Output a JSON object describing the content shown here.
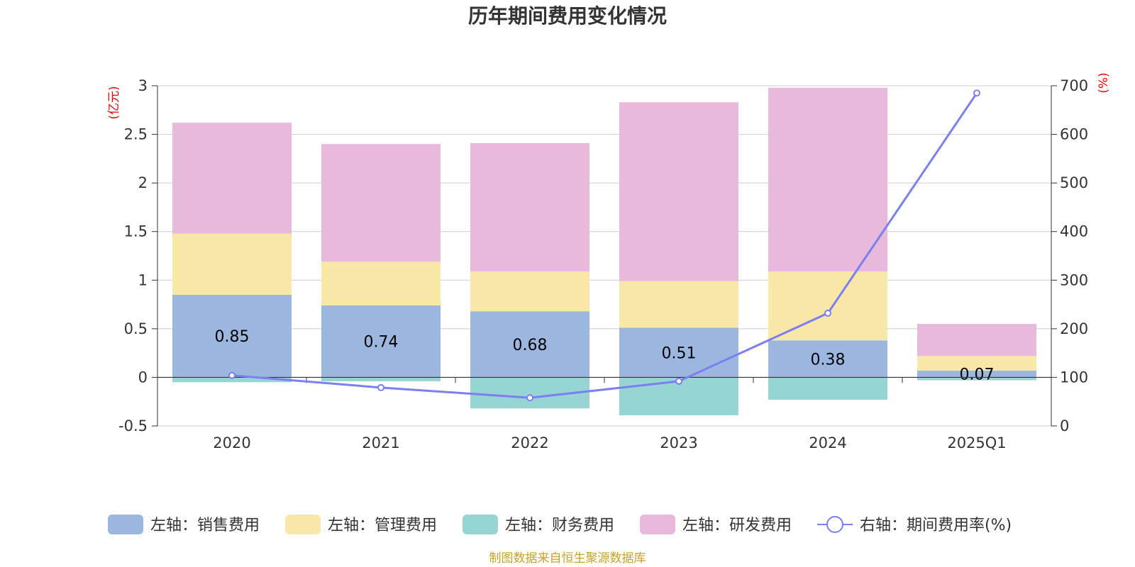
{
  "chart_data": {
    "type": "bar",
    "title": "历年期间费用变化情况",
    "categories": [
      "2020",
      "2021",
      "2022",
      "2023",
      "2024",
      "2025Q1"
    ],
    "left_axis": {
      "unit": "(亿元)",
      "ylim": [
        -0.5,
        3
      ],
      "ticks": [
        "3",
        "2.5",
        "2",
        "1.5",
        "1",
        "0.5",
        "0",
        "-0.5"
      ]
    },
    "right_axis": {
      "unit": "(%)",
      "ylim": [
        0,
        700
      ],
      "ticks": [
        "700",
        "600",
        "500",
        "400",
        "300",
        "200",
        "100",
        "0"
      ]
    },
    "series": [
      {
        "name": "左轴：销售费用",
        "axis": "left",
        "kind": "bar",
        "color": "#9bb7e0",
        "values": [
          0.85,
          0.74,
          0.68,
          0.51,
          0.38,
          0.07
        ],
        "labels": [
          "0.85",
          "0.74",
          "0.68",
          "0.51",
          "0.38",
          "0.07"
        ]
      },
      {
        "name": "左轴：管理费用",
        "axis": "left",
        "kind": "bar",
        "color": "#f8e7a6",
        "values": [
          0.63,
          0.45,
          0.41,
          0.48,
          0.71,
          0.15
        ]
      },
      {
        "name": "左轴：财务费用",
        "axis": "left",
        "kind": "bar",
        "color": "#97d5d5",
        "values": [
          -0.05,
          -0.04,
          -0.32,
          -0.39,
          -0.23,
          -0.03
        ]
      },
      {
        "name": "左轴：研发费用",
        "axis": "left",
        "kind": "bar",
        "color": "#e8b9da",
        "values": [
          1.14,
          1.21,
          1.32,
          1.84,
          1.89,
          0.33
        ]
      },
      {
        "name": "右轴：期间费用率(%)",
        "axis": "right",
        "kind": "line",
        "color": "#7b7ff0",
        "values": [
          104,
          79,
          58,
          92,
          232,
          685
        ]
      }
    ],
    "legend_position": "bottom",
    "grid": true
  },
  "source_note": "制图数据来自恒生聚源数据库"
}
